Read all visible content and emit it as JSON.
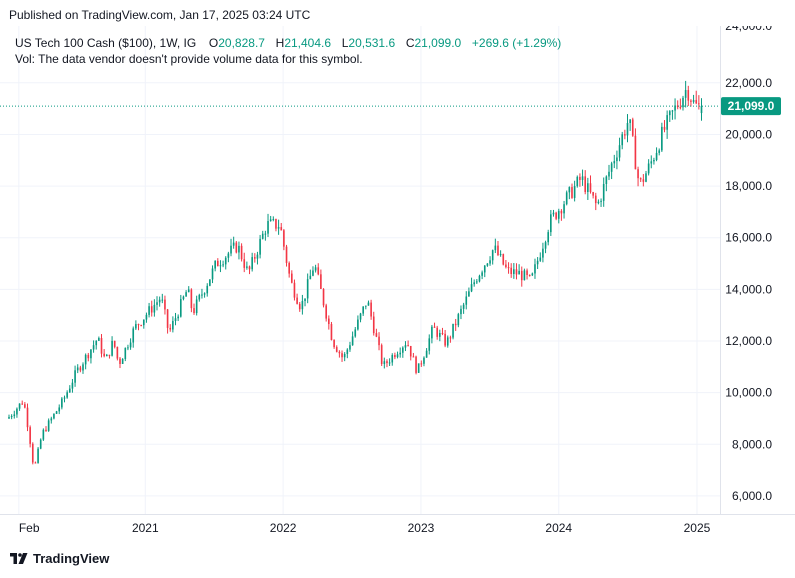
{
  "header": {
    "published": "Published on TradingView.com, Jan 17, 2025 03:24 UTC"
  },
  "legend": {
    "symbol": "US Tech 100 Cash ($100), 1W, IG",
    "o_label": "O",
    "o_value": "20,828.7",
    "h_label": "H",
    "h_value": "21,404.6",
    "l_label": "L",
    "l_value": "20,531.6",
    "c_label": "C",
    "c_value": "21,099.0",
    "change": "+269.6 (+1.29%)",
    "volume_note": "Vol: The data vendor doesn't provide volume data for this symbol."
  },
  "brand": {
    "name": "TradingView",
    "logo_icon": "tradingview-logo-icon"
  },
  "colors": {
    "up": "#089981",
    "down": "#f23645",
    "price_tag": "#089981",
    "grid": "#f0f3fa",
    "text": "#131722"
  },
  "chart_data": {
    "type": "candlestick",
    "ylim": [
      5300,
      24200
    ],
    "y_ticks": [
      6000,
      8000,
      10000,
      12000,
      14000,
      16000,
      18000,
      20000,
      22000
    ],
    "y_tick_labels": [
      "6,000.0",
      "8,000.0",
      "10,000.0",
      "12,000.0",
      "14,000.0",
      "16,000.0",
      "18,000.0",
      "20,000.0",
      "22,000.0"
    ],
    "top_partial_label": "24,000.0",
    "x_ticks": [
      {
        "label": "Feb",
        "date": "2020-02-01"
      },
      {
        "label": "2021",
        "date": "2021-01-01"
      },
      {
        "label": "2022",
        "date": "2022-01-01"
      },
      {
        "label": "2023",
        "date": "2023-01-01"
      },
      {
        "label": "2024",
        "date": "2024-01-01"
      },
      {
        "label": "2025",
        "date": "2025-01-01"
      }
    ],
    "x_range": [
      "2020-01-06",
      "2025-03-03"
    ],
    "last_price": 21099.0,
    "last_price_label": "21,099.0",
    "anchors": [
      [
        "2020-01-06",
        9000
      ],
      [
        "2020-02-17",
        9700
      ],
      [
        "2020-03-02",
        8500
      ],
      [
        "2020-03-16",
        7000
      ],
      [
        "2020-04-06",
        8400
      ],
      [
        "2020-06-01",
        9700
      ],
      [
        "2020-07-06",
        10800
      ],
      [
        "2020-08-31",
        12100
      ],
      [
        "2020-09-21",
        11200
      ],
      [
        "2020-10-12",
        12000
      ],
      [
        "2020-10-26",
        11100
      ],
      [
        "2020-12-07",
        12500
      ],
      [
        "2021-02-15",
        13700
      ],
      [
        "2021-03-08",
        12300
      ],
      [
        "2021-04-26",
        14000
      ],
      [
        "2021-05-10",
        13100
      ],
      [
        "2021-07-12",
        15000
      ],
      [
        "2021-09-06",
        15700
      ],
      [
        "2021-10-04",
        14600
      ],
      [
        "2021-11-22",
        16500
      ],
      [
        "2021-12-27",
        16500
      ],
      [
        "2022-01-24",
        14300
      ],
      [
        "2022-02-21",
        13300
      ],
      [
        "2022-03-28",
        15000
      ],
      [
        "2022-05-16",
        12000
      ],
      [
        "2022-06-13",
        11300
      ],
      [
        "2022-08-15",
        13600
      ],
      [
        "2022-09-26",
        11000
      ],
      [
        "2022-10-31",
        11600
      ],
      [
        "2022-11-28",
        12000
      ],
      [
        "2022-12-26",
        10800
      ],
      [
        "2023-02-06",
        12500
      ],
      [
        "2023-03-13",
        11900
      ],
      [
        "2023-05-29",
        14400
      ],
      [
        "2023-07-17",
        15600
      ],
      [
        "2023-08-21",
        14700
      ],
      [
        "2023-09-25",
        14600
      ],
      [
        "2023-10-23",
        14300
      ],
      [
        "2023-12-11",
        16600
      ],
      [
        "2024-01-29",
        17600
      ],
      [
        "2024-03-04",
        18300
      ],
      [
        "2024-04-15",
        17200
      ],
      [
        "2024-05-20",
        18700
      ],
      [
        "2024-07-08",
        20600
      ],
      [
        "2024-08-05",
        18000
      ],
      [
        "2024-09-02",
        18800
      ],
      [
        "2024-10-07",
        20100
      ],
      [
        "2024-11-04",
        20900
      ],
      [
        "2024-12-09",
        21800
      ],
      [
        "2024-12-30",
        21100
      ],
      [
        "2025-01-13",
        21099
      ]
    ]
  }
}
